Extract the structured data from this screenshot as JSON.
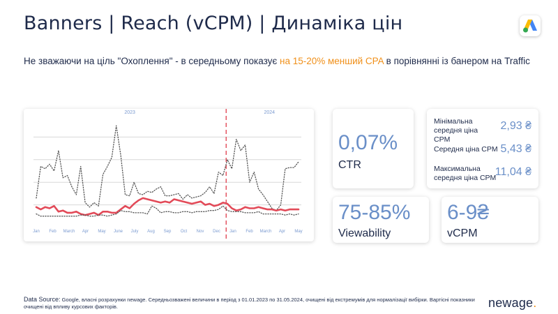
{
  "header": {
    "title": "Banners | Reach (vCPM) | Динаміка цін",
    "subtitle_pre": "Не зважаючи на ціль \"Охоплення\" - в середньому показує ",
    "subtitle_highlight": "на 15-20% менший CPA",
    "subtitle_post": " в порівнянні із банером на Traffic",
    "logo_icon": "google-ads-logo"
  },
  "chart_data": {
    "type": "line",
    "year_labels": [
      "2023",
      "2024"
    ],
    "x_labels": [
      "Jan",
      "Feb",
      "March",
      "Apr",
      "May",
      "June",
      "July",
      "Aug",
      "Sep",
      "Oct",
      "Nov",
      "Dec",
      "Jan",
      "Feb",
      "March",
      "Apr",
      "May"
    ],
    "divider_after_month": 12,
    "series": [
      {
        "name": "",
        "style": "dotted",
        "color": "#555555",
        "values": [
          4.6,
          7.4,
          7.2,
          7.6,
          7.0,
          8.8,
          6.4,
          6.6,
          5.6,
          4.9,
          7.4,
          4.2,
          3.8,
          4.2,
          3.9,
          6.7,
          7.4,
          8.2,
          11.0,
          8.4,
          4.9,
          4.8,
          6.0,
          5.0,
          4.9,
          5.2,
          5.1,
          5.4,
          5.6,
          4.8,
          4.8,
          4.9,
          5.0,
          4.5,
          4.9,
          4.6,
          4.7,
          4.8,
          5.1,
          5.6,
          5.0,
          6.9,
          6.6,
          8.0,
          7.2,
          9.8,
          8.8,
          9.3,
          6.0,
          6.9,
          5.4,
          4.9,
          4.3,
          3.7,
          3.5,
          4.0,
          7.2,
          7.3,
          7.3,
          7.8
        ]
      },
      {
        "name": "",
        "style": "solid",
        "color": "#e24a58",
        "values": [
          3.8,
          3.6,
          3.8,
          3.7,
          3.9,
          3.4,
          3.5,
          3.3,
          3.3,
          3.4,
          3.2,
          3.1,
          3.2,
          3.3,
          3.1,
          3.4,
          3.4,
          3.3,
          3.3,
          3.6,
          3.9,
          3.7,
          4.1,
          4.4,
          4.6,
          4.5,
          4.4,
          4.3,
          4.2,
          4.3,
          4.2,
          4.5,
          4.4,
          4.3,
          4.2,
          4.1,
          4.2,
          4.3,
          4.0,
          4.1,
          3.9,
          4.0,
          4.2,
          4.1,
          3.7,
          3.5,
          3.6,
          3.8,
          3.7,
          3.7,
          3.8,
          3.7,
          3.6,
          3.6,
          3.5,
          3.6,
          3.5,
          3.6,
          3.6,
          3.6
        ]
      },
      {
        "name": "",
        "style": "dotted",
        "color": "#555555",
        "values": [
          3.2,
          3.0,
          3.0,
          3.0,
          3.0,
          3.0,
          3.0,
          3.0,
          3.0,
          3.0,
          3.1,
          3.1,
          3.0,
          3.0,
          3.1,
          3.1,
          3.0,
          3.1,
          3.2,
          3.5,
          3.4,
          3.4,
          3.3,
          3.3,
          3.3,
          3.2,
          3.9,
          3.7,
          3.3,
          3.4,
          3.4,
          3.3,
          3.3,
          3.4,
          3.4,
          3.3,
          3.4,
          3.4,
          3.4,
          3.5,
          3.5,
          3.6,
          3.9,
          3.5,
          3.4,
          3.4,
          3.4,
          3.3,
          3.3,
          3.3,
          3.4,
          3.2,
          3.2,
          3.2,
          3.2,
          3.2,
          3.1,
          3.2,
          3.1,
          3.2
        ]
      }
    ],
    "ylim": [
      2,
      12
    ],
    "grid": true
  },
  "metrics": {
    "ctr": {
      "value": "0,07%",
      "label": "CTR"
    },
    "viewability": {
      "value": "75-85%",
      "label": "Viewability"
    },
    "vcpm": {
      "value": "6-9₴",
      "label": "vCPM"
    },
    "cpm_rows": [
      {
        "name": "Мінімальна середня ціна CPM",
        "value": "2,93 ₴"
      },
      {
        "name": "Середня ціна CPM",
        "value": "5,43 ₴"
      },
      {
        "name": "Максимальна середня ціна CPM",
        "value": "11,04 ₴"
      }
    ]
  },
  "footer": {
    "source_label": "Data Source:",
    "source_text": " Google, власні розрахунки newage.  Середньозважені  величини в період з 01.01.2023 по 31.05.2024, очищені від екстремумів для нормалізації вибірки. Вартісні показники очищені від впливу курсових факторів.",
    "brand": "newage",
    "brand_dot": "."
  },
  "colors": {
    "accent": "#6a8fc8",
    "highlight": "#f0901a",
    "line": "#e24a58",
    "divider": "#e24a58"
  }
}
